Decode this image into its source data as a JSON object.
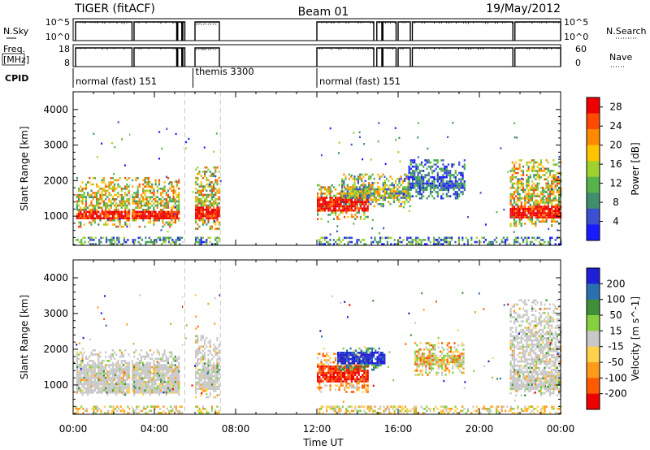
{
  "header": {
    "radar": "TIGER (fitACF)",
    "beam": "Beam 01",
    "date": "19/May/2012"
  },
  "top_panels": {
    "nsky_label": "N.Sky",
    "nsky_ticks": [
      "10^5",
      "10^0"
    ],
    "nsearch_label": "N.Search",
    "freq_label": [
      "Freq.",
      "[MHz]"
    ],
    "freq_ticks": [
      "18",
      "8"
    ],
    "nave_ticks": [
      "60",
      "0"
    ],
    "nave_label": "Nave",
    "cpid_label": "CPID",
    "cpid_modes": [
      {
        "label": "normal (fast) 151",
        "start_h": 0.0,
        "end_h": 5.9
      },
      {
        "label": "themis 3300",
        "start_h": 5.9,
        "end_h": 12.0
      },
      {
        "label": "normal (fast) 151",
        "start_h": 12.0,
        "end_h": 24.0
      }
    ]
  },
  "chart_data": [
    {
      "type": "heatmap",
      "title": "",
      "ylabel": "Slant Range [km]",
      "xlabel": "",
      "xlim_hours": [
        0,
        24
      ],
      "ylim": [
        180,
        4500
      ],
      "yticks": [
        1000,
        2000,
        3000,
        4000
      ],
      "colorbar": {
        "label": "Power [dB]",
        "ticks": [
          4,
          8,
          12,
          16,
          20,
          24,
          28
        ],
        "range": [
          0,
          30
        ],
        "colors": [
          "#1a1aff",
          "#3c4fd0",
          "#3f8f6e",
          "#56b34a",
          "#9ed12e",
          "#ffc400",
          "#ff8a00",
          "#ff4a00",
          "#ee0000"
        ]
      },
      "echo_regions": [
        {
          "t0": 0.15,
          "t1": 5.25,
          "r0": 700,
          "r1": 2100,
          "core_r0": 950,
          "core_r1": 1150,
          "level": "high"
        },
        {
          "t0": 6.0,
          "t1": 7.2,
          "r0": 650,
          "r1": 2400,
          "core_r0": 950,
          "core_r1": 1300,
          "level": "high"
        },
        {
          "t0": 12.0,
          "t1": 14.5,
          "r0": 900,
          "r1": 1900,
          "core_r0": 1150,
          "core_r1": 1550,
          "level": "high"
        },
        {
          "t0": 13.2,
          "t1": 16.6,
          "r0": 1300,
          "r1": 2200,
          "core_r0": 1500,
          "core_r1": 1700,
          "level": "mid"
        },
        {
          "t0": 16.5,
          "t1": 19.3,
          "r0": 1500,
          "r1": 2600,
          "core_r0": 1800,
          "core_r1": 2000,
          "level": "low"
        },
        {
          "t0": 21.5,
          "t1": 24.0,
          "r0": 700,
          "r1": 2600,
          "core_r0": 950,
          "core_r1": 1300,
          "level": "high"
        }
      ]
    },
    {
      "type": "heatmap",
      "title": "",
      "ylabel": "Slant Range [km]",
      "xlabel": "Time UT",
      "xlim_hours": [
        0,
        24
      ],
      "xticks": [
        "00:00",
        "04:00",
        "08:00",
        "12:00",
        "16:00",
        "20:00",
        "00:00"
      ],
      "ylim": [
        180,
        4500
      ],
      "yticks": [
        1000,
        2000,
        3000,
        4000
      ],
      "colorbar": {
        "label": "Velocity [m s^-1]",
        "ticks": [
          200,
          100,
          50,
          15,
          -15,
          -50,
          -100,
          -200
        ],
        "range": [
          -250,
          250
        ],
        "colors": [
          "#1f1fd8",
          "#2a6fb0",
          "#3f8f3a",
          "#86cf3e",
          "#c8c8c8",
          "#ffd04a",
          "#ff9a1a",
          "#ff5a00",
          "#ee0000"
        ]
      },
      "echo_regions": [
        {
          "t0": 0.15,
          "t1": 5.25,
          "r0": 700,
          "r1": 2000,
          "core_r0": 800,
          "core_r1": 1600,
          "level": "ground"
        },
        {
          "t0": 6.0,
          "t1": 7.2,
          "r0": 650,
          "r1": 2400,
          "core_r0": 900,
          "core_r1": 1500,
          "level": "ground"
        },
        {
          "t0": 12.0,
          "t1": 14.5,
          "r0": 800,
          "r1": 1900,
          "core_r0": 1100,
          "core_r1": 1600,
          "level": "neg"
        },
        {
          "t0": 13.0,
          "t1": 15.3,
          "r0": 1400,
          "r1": 2050,
          "core_r0": 1600,
          "core_r1": 1950,
          "level": "pos"
        },
        {
          "t0": 16.8,
          "t1": 19.2,
          "r0": 1300,
          "r1": 2200,
          "core_r0": 1600,
          "core_r1": 1900,
          "level": "mixneg"
        },
        {
          "t0": 21.5,
          "t1": 24.0,
          "r0": 700,
          "r1": 3400,
          "core_r0": 900,
          "core_r1": 1400,
          "level": "ground"
        }
      ]
    }
  ]
}
